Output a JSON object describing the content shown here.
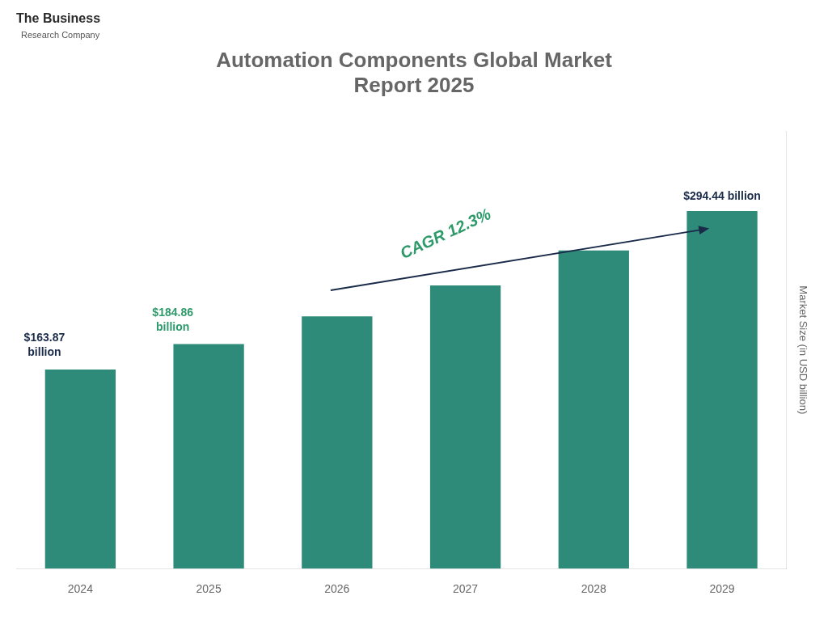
{
  "chart_data": {
    "type": "bar",
    "title": "Automation Components Global Market\nReport 2025",
    "categories": [
      "2024",
      "2025",
      "2026",
      "2027",
      "2028",
      "2029"
    ],
    "values": [
      163.87,
      184.86,
      207.6,
      233.2,
      261.9,
      294.44
    ],
    "color": "#2e8b7a",
    "ylabel": "Market Size (in USD billion)",
    "ylim": [
      0,
      360
    ],
    "grid": false,
    "tick_labels": "x",
    "annotations": [
      {
        "text": "$163.87\nbillion",
        "category": "2024",
        "color": "#1a2b4a"
      },
      {
        "text": "$184.86\nbillion",
        "category": "2025",
        "color": "#2e9a6a"
      },
      {
        "text": "$294.44 billion",
        "category": "2029",
        "color": "#1a2b4a"
      },
      {
        "text": "CAGR 12.3%",
        "from": "2026",
        "to": "2029",
        "color": "#2e9a6a",
        "arrow_color": "#1a2b4a"
      },
      {
        "text": "The Business",
        "color": "#2a2a2a"
      },
      {
        "text": "Research Company",
        "color": "#555555"
      }
    ]
  }
}
